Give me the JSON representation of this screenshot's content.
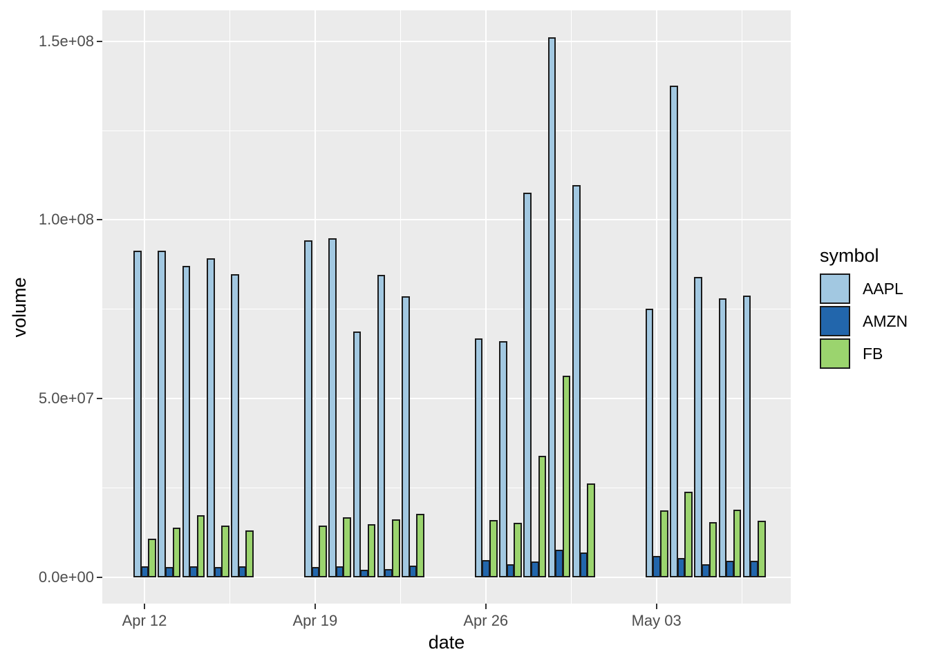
{
  "figure": {
    "background": "#FFFFFF",
    "panel_background": "#EBEBEB",
    "grid_color": "#FFFFFF",
    "bar_border_color": "#1A1A1A",
    "axis_text_color": "#4D4D4D",
    "title_text_color": "#000000"
  },
  "chart_data": {
    "type": "bar",
    "grouping": "dodged",
    "title": "",
    "xlabel": "date",
    "ylabel": "volume",
    "legend": {
      "title": "symbol",
      "position": "right",
      "entries": [
        {
          "name": "AAPL",
          "color": "#A2C8E1"
        },
        {
          "name": "AMZN",
          "color": "#2266AC"
        },
        {
          "name": "FB",
          "color": "#9BD46E"
        }
      ]
    },
    "x_ticks": [
      {
        "label": "Apr 12",
        "day_offset": 0
      },
      {
        "label": "Apr 19",
        "day_offset": 7
      },
      {
        "label": "Apr 26",
        "day_offset": 14
      },
      {
        "label": "May 03",
        "day_offset": 21
      }
    ],
    "x_minor_day_offsets": [
      3.5,
      10.5,
      17.5,
      24.5
    ],
    "y_ticks": [
      {
        "label": "0.0e+00",
        "value": 0
      },
      {
        "label": "5.0e+07",
        "value": 50000000
      },
      {
        "label": "1.0e+08",
        "value": 100000000
      },
      {
        "label": "1.5e+08",
        "value": 150000000
      }
    ],
    "y_minor_gridlines": [
      25000000,
      75000000,
      125000000
    ],
    "ylim": [
      0,
      158900000
    ],
    "series_order": [
      "AAPL",
      "AMZN",
      "FB"
    ],
    "days": [
      {
        "date": "Apr 12",
        "day_offset": 0,
        "volumes": {
          "AAPL": 91400000,
          "AMZN": 3100000,
          "FB": 10900000
        }
      },
      {
        "date": "Apr 13",
        "day_offset": 1,
        "volumes": {
          "AAPL": 91300000,
          "AMZN": 2900000,
          "FB": 14000000
        }
      },
      {
        "date": "Apr 14",
        "day_offset": 2,
        "volumes": {
          "AAPL": 87200000,
          "AMZN": 3000000,
          "FB": 17300000
        }
      },
      {
        "date": "Apr 15",
        "day_offset": 3,
        "volumes": {
          "AAPL": 89300000,
          "AMZN": 2900000,
          "FB": 14400000
        }
      },
      {
        "date": "Apr 16",
        "day_offset": 4,
        "volumes": {
          "AAPL": 84900000,
          "AMZN": 3000000,
          "FB": 13200000
        }
      },
      {
        "date": "Apr 19",
        "day_offset": 7,
        "volumes": {
          "AAPL": 94300000,
          "AMZN": 2900000,
          "FB": 14400000
        }
      },
      {
        "date": "Apr 20",
        "day_offset": 8,
        "volumes": {
          "AAPL": 94800000,
          "AMZN": 3000000,
          "FB": 16800000
        }
      },
      {
        "date": "Apr 21",
        "day_offset": 9,
        "volumes": {
          "AAPL": 68800000,
          "AMZN": 2200000,
          "FB": 14900000
        }
      },
      {
        "date": "Apr 22",
        "day_offset": 10,
        "volumes": {
          "AAPL": 84600000,
          "AMZN": 2400000,
          "FB": 16300000
        }
      },
      {
        "date": "Apr 23",
        "day_offset": 11,
        "volumes": {
          "AAPL": 78700000,
          "AMZN": 3200000,
          "FB": 17700000
        }
      },
      {
        "date": "Apr 26",
        "day_offset": 14,
        "volumes": {
          "AAPL": 66900000,
          "AMZN": 4800000,
          "FB": 16100000
        }
      },
      {
        "date": "Apr 27",
        "day_offset": 15,
        "volumes": {
          "AAPL": 66000000,
          "AMZN": 3700000,
          "FB": 15300000
        }
      },
      {
        "date": "Apr 28",
        "day_offset": 16,
        "volumes": {
          "AAPL": 107700000,
          "AMZN": 4500000,
          "FB": 34000000
        }
      },
      {
        "date": "Apr 29",
        "day_offset": 17,
        "volumes": {
          "AAPL": 151000000,
          "AMZN": 7800000,
          "FB": 56400000
        }
      },
      {
        "date": "Apr 30",
        "day_offset": 18,
        "volumes": {
          "AAPL": 109700000,
          "AMZN": 7000000,
          "FB": 26200000
        }
      },
      {
        "date": "May 03",
        "day_offset": 21,
        "volumes": {
          "AAPL": 75100000,
          "AMZN": 5900000,
          "FB": 18700000
        }
      },
      {
        "date": "May 04",
        "day_offset": 22,
        "volumes": {
          "AAPL": 137500000,
          "AMZN": 5500000,
          "FB": 24000000
        }
      },
      {
        "date": "May 05",
        "day_offset": 23,
        "volumes": {
          "AAPL": 84100000,
          "AMZN": 3700000,
          "FB": 15500000
        }
      },
      {
        "date": "May 06",
        "day_offset": 24,
        "volumes": {
          "AAPL": 78000000,
          "AMZN": 4600000,
          "FB": 19000000
        }
      },
      {
        "date": "May 07",
        "day_offset": 25,
        "volumes": {
          "AAPL": 78800000,
          "AMZN": 4600000,
          "FB": 15900000
        }
      }
    ]
  }
}
